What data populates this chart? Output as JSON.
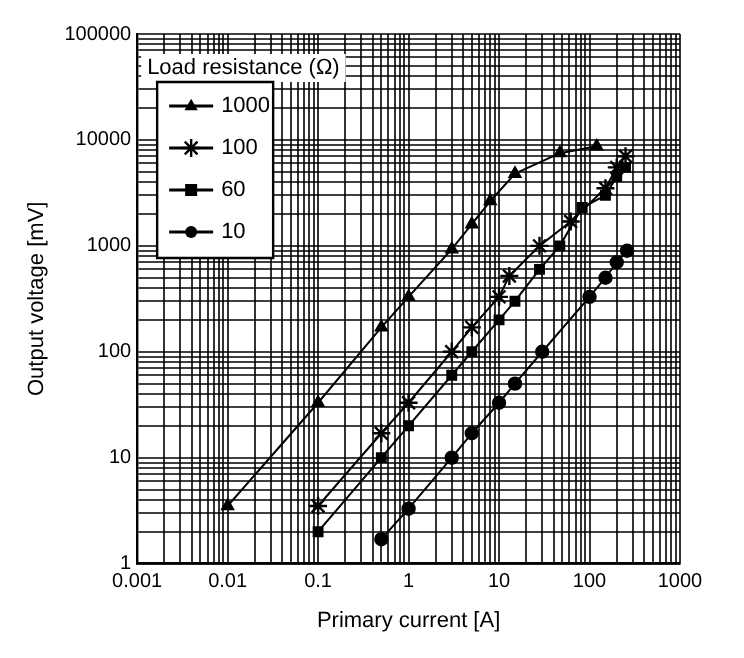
{
  "chart_data": {
    "type": "line",
    "xlabel": "Primary current [A]",
    "ylabel": "Output voltage [mV]",
    "legend_title": "Load resistance (Ω)",
    "legend": "top left",
    "log": "xy",
    "grid": true,
    "line_style": "solid",
    "xlim": [
      0.001,
      1000
    ],
    "ylim": [
      1,
      100000
    ],
    "xticks": [
      {
        "value": 0.001,
        "label": "0.001"
      },
      {
        "value": 0.002,
        "label": null
      },
      {
        "value": 0.003,
        "label": null
      },
      {
        "value": 0.004,
        "label": null
      },
      {
        "value": 0.005,
        "label": null
      },
      {
        "value": 0.006,
        "label": null
      },
      {
        "value": 0.007,
        "label": null
      },
      {
        "value": 0.008,
        "label": null
      },
      {
        "value": 0.009,
        "label": null
      },
      {
        "value": 0.01,
        "label": "0.01"
      },
      {
        "value": 0.02,
        "label": null
      },
      {
        "value": 0.03,
        "label": null
      },
      {
        "value": 0.04,
        "label": null
      },
      {
        "value": 0.05,
        "label": null
      },
      {
        "value": 0.06,
        "label": null
      },
      {
        "value": 0.07,
        "label": null
      },
      {
        "value": 0.08,
        "label": null
      },
      {
        "value": 0.09,
        "label": null
      },
      {
        "value": 0.1,
        "label": "0.1"
      },
      {
        "value": 0.2,
        "label": null
      },
      {
        "value": 0.3,
        "label": null
      },
      {
        "value": 0.4,
        "label": null
      },
      {
        "value": 0.5,
        "label": null
      },
      {
        "value": 0.6,
        "label": null
      },
      {
        "value": 0.7,
        "label": null
      },
      {
        "value": 0.8,
        "label": null
      },
      {
        "value": 0.9,
        "label": null
      },
      1,
      {
        "value": 2,
        "label": null
      },
      {
        "value": 3,
        "label": null
      },
      {
        "value": 4,
        "label": null
      },
      {
        "value": 5,
        "label": null
      },
      {
        "value": 6,
        "label": null
      },
      {
        "value": 7,
        "label": null
      },
      {
        "value": 8,
        "label": null
      },
      {
        "value": 9,
        "label": null
      },
      10,
      {
        "value": 20,
        "label": null
      },
      {
        "value": 30,
        "label": null
      },
      {
        "value": 40,
        "label": null
      },
      {
        "value": 50,
        "label": null
      },
      {
        "value": 60,
        "label": null
      },
      {
        "value": 70,
        "label": null
      },
      {
        "value": 80,
        "label": null
      },
      {
        "value": 90,
        "label": null
      },
      100,
      {
        "value": 200,
        "label": null
      },
      {
        "value": 300,
        "label": null
      },
      {
        "value": 400,
        "label": null
      },
      {
        "value": 500,
        "label": null
      },
      {
        "value": 600,
        "label": null
      },
      {
        "value": 700,
        "label": null
      },
      {
        "value": 800,
        "label": null
      },
      {
        "value": 900,
        "label": null
      },
      1000
    ],
    "yticks": [
      1,
      {
        "value": 2,
        "label": null
      },
      {
        "value": 3,
        "label": null
      },
      {
        "value": 4,
        "label": null
      },
      {
        "value": 5,
        "label": null
      },
      {
        "value": 6,
        "label": null
      },
      {
        "value": 7,
        "label": null
      },
      {
        "value": 8,
        "label": null
      },
      {
        "value": 9,
        "label": null
      },
      10,
      {
        "value": 20,
        "label": null
      },
      {
        "value": 30,
        "label": null
      },
      {
        "value": 40,
        "label": null
      },
      {
        "value": 50,
        "label": null
      },
      {
        "value": 60,
        "label": null
      },
      {
        "value": 70,
        "label": null
      },
      {
        "value": 80,
        "label": null
      },
      {
        "value": 90,
        "label": null
      },
      100,
      {
        "value": 200,
        "label": null
      },
      {
        "value": 300,
        "label": null
      },
      {
        "value": 400,
        "label": null
      },
      {
        "value": 500,
        "label": null
      },
      {
        "value": 600,
        "label": null
      },
      {
        "value": 700,
        "label": null
      },
      {
        "value": 800,
        "label": null
      },
      {
        "value": 900,
        "label": null
      },
      1000,
      {
        "value": 2000,
        "label": null
      },
      {
        "value": 3000,
        "label": null
      },
      {
        "value": 4000,
        "label": null
      },
      {
        "value": 5000,
        "label": null
      },
      {
        "value": 6000,
        "label": null
      },
      {
        "value": 7000,
        "label": null
      },
      {
        "value": 8000,
        "label": null
      },
      {
        "value": 9000,
        "label": null
      },
      10000,
      {
        "value": 20000,
        "label": null
      },
      {
        "value": 30000,
        "label": null
      },
      {
        "value": 40000,
        "label": null
      },
      {
        "value": 50000,
        "label": null
      },
      {
        "value": 60000,
        "label": null
      },
      {
        "value": 70000,
        "label": null
      },
      {
        "value": 80000,
        "label": null
      },
      {
        "value": 90000,
        "label": null
      },
      100000
    ],
    "series": [
      {
        "name": "1000",
        "color": "#000000",
        "marker": "triangle",
        "x": [
          0.01,
          0.1,
          0.5,
          1,
          3,
          5,
          8,
          15,
          47,
          120
        ],
        "values": [
          3.5,
          33,
          170,
          330,
          930,
          1600,
          2650,
          4800,
          7500,
          8700
        ]
      },
      {
        "name": "100",
        "color": "#000000",
        "marker": "cross",
        "x": [
          0.1,
          0.5,
          1,
          3,
          5,
          10,
          13,
          28,
          62,
          150,
          200,
          250
        ],
        "values": [
          3.5,
          17,
          33,
          100,
          170,
          330,
          520,
          1000,
          1700,
          3500,
          5500,
          7000
        ]
      },
      {
        "name": "60",
        "color": "#000000",
        "marker": "square",
        "x": [
          0.1,
          0.5,
          1,
          3,
          5,
          10,
          15,
          28,
          47,
          83,
          150,
          200,
          250
        ],
        "values": [
          2,
          10,
          20,
          60,
          100,
          200,
          300,
          600,
          1000,
          2300,
          3000,
          4500,
          5500
        ]
      },
      {
        "name": "10",
        "color": "#000000",
        "marker": "circle",
        "x": [
          0.5,
          1,
          3,
          5,
          10,
          15,
          30,
          100,
          150,
          200,
          260
        ],
        "values": [
          1.7,
          3.3,
          10,
          17,
          33,
          50,
          100,
          330,
          500,
          700,
          900
        ]
      }
    ]
  }
}
